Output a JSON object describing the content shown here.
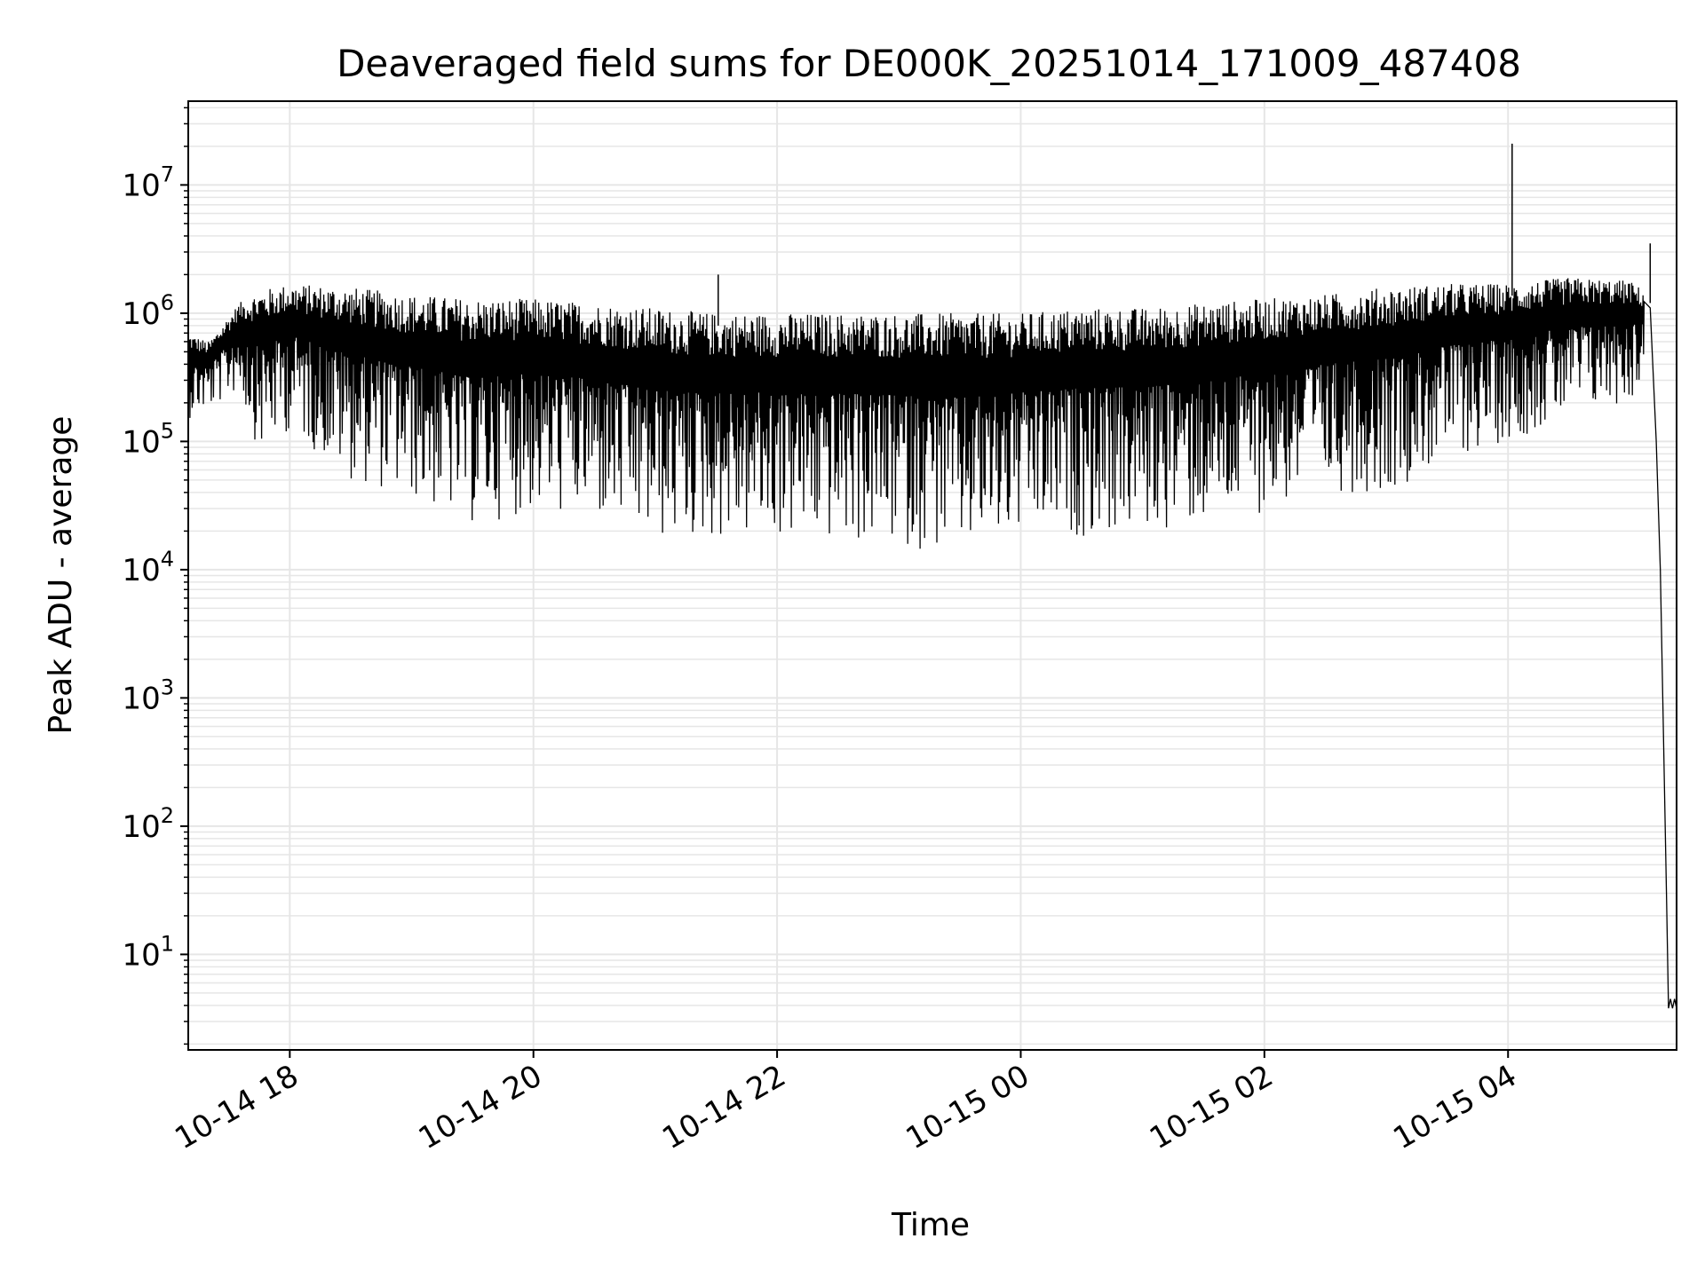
{
  "chart_data": {
    "type": "line",
    "title": "Deaveraged field sums for DE000K_20251014_171009_487408",
    "xlabel": "Time",
    "ylabel": "Peak ADU - average",
    "yscale": "log",
    "ylim": [
      1.8,
      45000000
    ],
    "xlim": [
      "2025-10-14 17:10",
      "2025-10-15 05:23"
    ],
    "grid": true,
    "line_color": "#000000",
    "grid_color": "#e6e6e6",
    "x_ticks": [
      {
        "value": "2025-10-14 18:00",
        "label": "10-14 18"
      },
      {
        "value": "2025-10-14 20:00",
        "label": "10-14 20"
      },
      {
        "value": "2025-10-14 22:00",
        "label": "10-14 22"
      },
      {
        "value": "2025-10-15 00:00",
        "label": "10-15 00"
      },
      {
        "value": "2025-10-15 02:00",
        "label": "10-15 02"
      },
      {
        "value": "2025-10-15 04:00",
        "label": "10-15 04"
      }
    ],
    "y_ticks": [
      {
        "value": 10,
        "base": "10",
        "exp": "1"
      },
      {
        "value": 100,
        "base": "10",
        "exp": "2"
      },
      {
        "value": 1000,
        "base": "10",
        "exp": "3"
      },
      {
        "value": 10000,
        "base": "10",
        "exp": "4"
      },
      {
        "value": 100000,
        "base": "10",
        "exp": "5"
      },
      {
        "value": 1000000,
        "base": "10",
        "exp": "6"
      },
      {
        "value": 10000000,
        "base": "10",
        "exp": "7"
      }
    ],
    "series": [
      {
        "envelope": [
          {
            "time": "2025-10-14 17:10",
            "upper": 700000,
            "lower": 150000
          },
          {
            "time": "2025-10-14 17:20",
            "upper": 600000,
            "lower": 170000
          },
          {
            "time": "2025-10-14 17:35",
            "upper": 1200000,
            "lower": 250000
          },
          {
            "time": "2025-10-14 17:45",
            "upper": 1500000,
            "lower": 80000
          },
          {
            "time": "2025-10-14 18:00",
            "upper": 1700000,
            "lower": 120000
          },
          {
            "time": "2025-10-14 18:30",
            "upper": 1600000,
            "lower": 50000
          },
          {
            "time": "2025-10-14 19:00",
            "upper": 1400000,
            "lower": 35000
          },
          {
            "time": "2025-10-14 19:30",
            "upper": 1300000,
            "lower": 22000
          },
          {
            "time": "2025-10-14 20:00",
            "upper": 1300000,
            "lower": 28000
          },
          {
            "time": "2025-10-14 20:30",
            "upper": 1200000,
            "lower": 24000
          },
          {
            "time": "2025-10-14 21:00",
            "upper": 1100000,
            "lower": 16000
          },
          {
            "time": "2025-10-14 21:30",
            "upper": 1000000,
            "lower": 17000
          },
          {
            "time": "2025-10-14 22:00",
            "upper": 1000000,
            "lower": 17000
          },
          {
            "time": "2025-10-14 22:30",
            "upper": 1000000,
            "lower": 16000
          },
          {
            "time": "2025-10-14 23:00",
            "upper": 1000000,
            "lower": 15000
          },
          {
            "time": "2025-10-14 23:30",
            "upper": 1000000,
            "lower": 13000
          },
          {
            "time": "2025-10-15 00:00",
            "upper": 1000000,
            "lower": 17000
          },
          {
            "time": "2025-10-15 00:30",
            "upper": 1100000,
            "lower": 18000
          },
          {
            "time": "2025-10-15 01:00",
            "upper": 1100000,
            "lower": 19000
          },
          {
            "time": "2025-10-15 01:30",
            "upper": 1200000,
            "lower": 22000
          },
          {
            "time": "2025-10-15 02:00",
            "upper": 1300000,
            "lower": 28000
          },
          {
            "time": "2025-10-15 02:30",
            "upper": 1400000,
            "lower": 40000
          },
          {
            "time": "2025-10-15 03:00",
            "upper": 1600000,
            "lower": 40000
          },
          {
            "time": "2025-10-15 03:30",
            "upper": 1700000,
            "lower": 70000
          },
          {
            "time": "2025-10-15 04:00",
            "upper": 1700000,
            "lower": 100000
          },
          {
            "time": "2025-10-15 04:30",
            "upper": 1900000,
            "lower": 150000
          },
          {
            "time": "2025-10-15 05:00",
            "upper": 1800000,
            "lower": 200000
          },
          {
            "time": "2025-10-15 05:07",
            "upper": 1500000,
            "lower": 300000
          }
        ],
        "spikes": [
          {
            "time": "2025-10-14 21:31",
            "value": 2000000
          },
          {
            "time": "2025-10-15 04:02",
            "value": 21000000
          },
          {
            "time": "2025-10-15 05:10",
            "value": 3500000
          }
        ],
        "tail": [
          {
            "time": "2025-10-15 05:10",
            "value": 1100000
          },
          {
            "time": "2025-10-15 05:13",
            "value": 100000
          },
          {
            "time": "2025-10-15 05:15",
            "value": 10000
          },
          {
            "time": "2025-10-15 05:18",
            "value": 30
          },
          {
            "time": "2025-10-15 05:19",
            "value": 3.8
          },
          {
            "time": "2025-10-15 05:20",
            "value": 4.5
          },
          {
            "time": "2025-10-15 05:21",
            "value": 3.8
          },
          {
            "time": "2025-10-15 05:22",
            "value": 4.5
          },
          {
            "time": "2025-10-15 05:23",
            "value": 3.8
          }
        ]
      }
    ]
  }
}
